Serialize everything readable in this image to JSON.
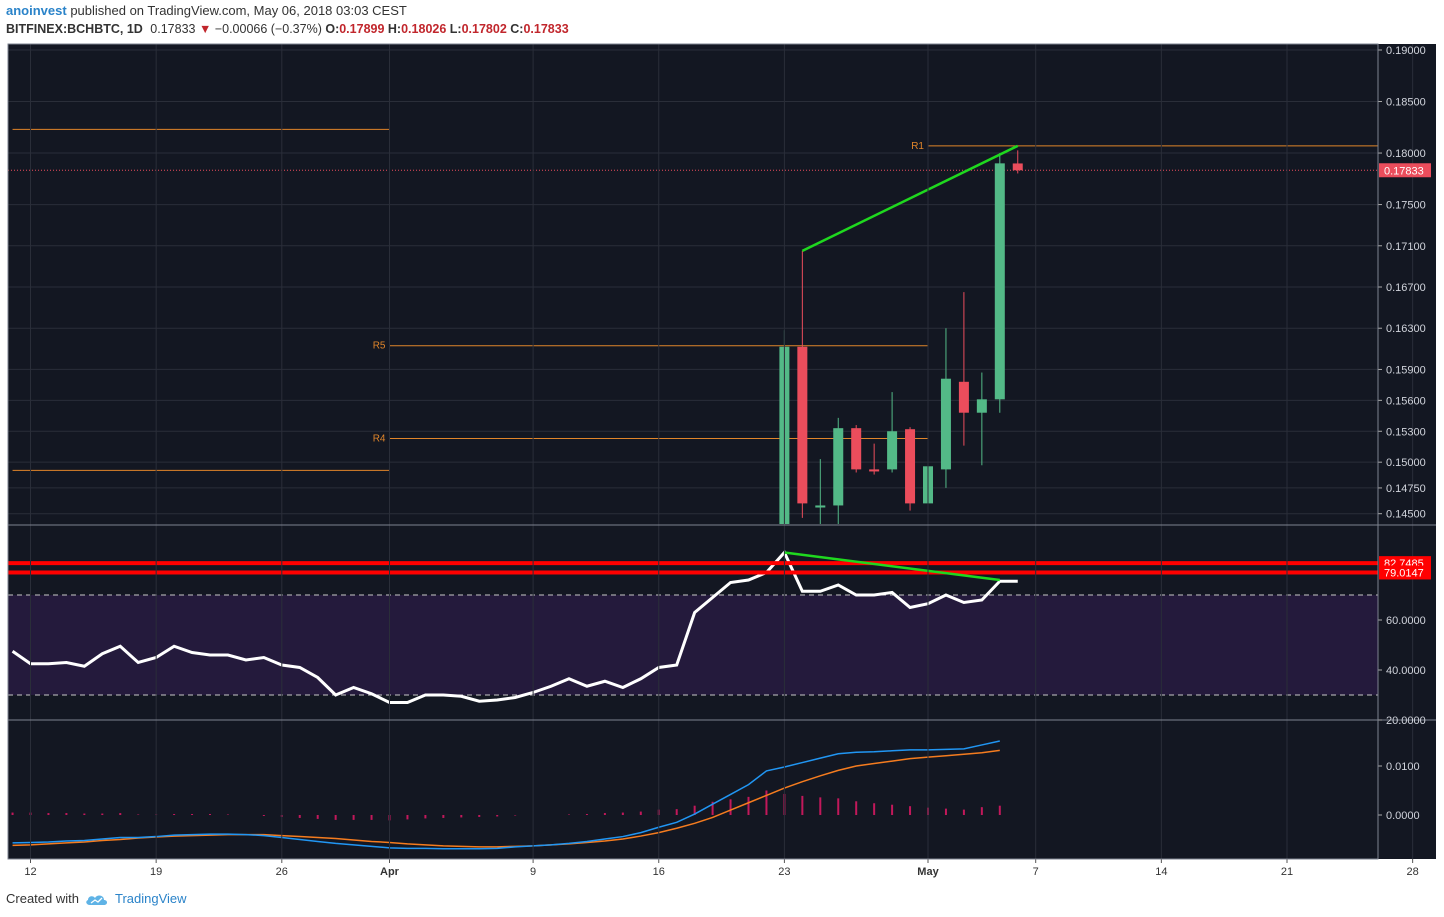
{
  "header": {
    "user": "anoinvest",
    "published_text": "published on TradingView.com, May 06, 2018 03:03 CEST",
    "symbol": "BITFINEX:BCHBTC, 1D",
    "last": "0.17833",
    "change": "−0.00066 (−0.37%)",
    "o_label": "O:",
    "o_value": "0.17899",
    "h_label": "H:",
    "h_value": "0.18026",
    "l_label": "L:",
    "l_value": "0.17802",
    "c_label": "C:",
    "c_value": "0.17833"
  },
  "footer": {
    "created_with": "Created with",
    "brand": "TradingView"
  },
  "colors": {
    "background": "#131722",
    "grid": "#2a2e39",
    "up": "#53b987",
    "down": "#eb4d5c",
    "pivot": "#e0852a",
    "trend": "#1fd81f",
    "rsi_line": "#ffffff",
    "rsi_band": "#241a3c",
    "rsi_level": "#ff0000",
    "macd": "#2196f3",
    "signal": "#f57c1f",
    "hist": "#c2185b"
  },
  "chart_data": [
    {
      "type": "candlestick",
      "name": "price",
      "yticks": [
        "0.19000",
        "0.18500",
        "0.18000",
        "0.17500",
        "0.17100",
        "0.16700",
        "0.16300",
        "0.15900",
        "0.15600",
        "0.15300",
        "0.15000",
        "0.14750",
        "0.14500"
      ],
      "last_price_label": "0.17833",
      "xticks": [
        {
          "day": 0,
          "label": "12"
        },
        {
          "day": 7,
          "label": "19"
        },
        {
          "day": 14,
          "label": "26"
        },
        {
          "day": 20,
          "label": "Apr"
        },
        {
          "day": 28,
          "label": "9"
        },
        {
          "day": 35,
          "label": "16"
        },
        {
          "day": 42,
          "label": "23"
        },
        {
          "day": 50,
          "label": "May"
        },
        {
          "day": 56,
          "label": "7"
        },
        {
          "day": 63,
          "label": "14"
        },
        {
          "day": 70,
          "label": "21"
        },
        {
          "day": 77,
          "label": "28"
        }
      ],
      "candles": [
        {
          "day": 42,
          "o": 0.144,
          "h": 0.1628,
          "l": 0.144,
          "c": 0.1612
        },
        {
          "day": 43,
          "o": 0.1612,
          "h": 0.1705,
          "l": 0.1446,
          "c": 0.146
        },
        {
          "day": 44,
          "o": 0.1456,
          "h": 0.1503,
          "l": 0.144,
          "c": 0.1458
        },
        {
          "day": 45,
          "o": 0.1458,
          "h": 0.1543,
          "l": 0.144,
          "c": 0.1533
        },
        {
          "day": 46,
          "o": 0.1533,
          "h": 0.1536,
          "l": 0.149,
          "c": 0.1493
        },
        {
          "day": 47,
          "o": 0.1493,
          "h": 0.1518,
          "l": 0.1488,
          "c": 0.1491
        },
        {
          "day": 48,
          "o": 0.1493,
          "h": 0.1568,
          "l": 0.149,
          "c": 0.153
        },
        {
          "day": 49,
          "o": 0.1532,
          "h": 0.1534,
          "l": 0.1453,
          "c": 0.146
        },
        {
          "day": 50,
          "o": 0.146,
          "h": 0.1496,
          "l": 0.144,
          "c": 0.1496
        },
        {
          "day": 51,
          "o": 0.1493,
          "h": 0.163,
          "l": 0.1475,
          "c": 0.1581
        },
        {
          "day": 52,
          "o": 0.1578,
          "h": 0.1665,
          "l": 0.1516,
          "c": 0.1548
        },
        {
          "day": 53,
          "o": 0.1548,
          "h": 0.1587,
          "l": 0.1497,
          "c": 0.1561
        },
        {
          "day": 54,
          "o": 0.1561,
          "h": 0.18,
          "l": 0.1548,
          "c": 0.179
        },
        {
          "day": 55,
          "o": 0.17899,
          "h": 0.18026,
          "l": 0.17802,
          "c": 0.17833
        }
      ],
      "pivot_lines": [
        {
          "label": "",
          "value": 0.1823,
          "day_from": -1,
          "day_to": 20
        },
        {
          "label": "R1",
          "value": 0.1807,
          "day_from": 50,
          "day_to": 77
        },
        {
          "label": "R5",
          "value": 0.1613,
          "day_from": 20,
          "day_to": 50
        },
        {
          "label": "R4",
          "value": 0.1523,
          "day_from": 20,
          "day_to": 50
        },
        {
          "label": "",
          "value": 0.1492,
          "day_from": -1,
          "day_to": 20
        }
      ],
      "trendline": [
        {
          "day": 43,
          "value": 0.1705
        },
        {
          "day": 55,
          "value": 0.1807
        }
      ]
    },
    {
      "type": "line",
      "name": "rsi",
      "yticks": [
        "60.0000",
        "40.0000",
        "20.0000"
      ],
      "levels": [
        {
          "label": "82.7485",
          "value": 82.7485
        },
        {
          "label": "79.0147",
          "value": 79.0147
        }
      ],
      "band": [
        30,
        70
      ],
      "values": [
        47.5,
        42.5,
        42.5,
        43,
        41.5,
        46.5,
        49.5,
        43,
        45,
        49.5,
        47,
        46,
        46,
        44,
        45,
        42,
        41,
        37,
        30,
        33,
        30.5,
        27,
        27,
        30,
        30,
        29.5,
        27.5,
        28,
        29,
        31,
        33.5,
        36.5,
        33.5,
        35.5,
        33,
        36.5,
        41,
        42,
        63,
        69,
        75,
        76,
        79,
        87,
        71.5,
        71.5,
        74,
        70,
        70,
        71,
        65,
        66.5,
        70,
        67,
        68,
        75.5,
        75.5
      ],
      "trendline": [
        {
          "day": 42,
          "value": 87
        },
        {
          "day": 54,
          "value": 76
        }
      ]
    },
    {
      "type": "line",
      "name": "macd",
      "yticks": [
        "0.0100",
        "0.0000"
      ],
      "macd": [
        -0.0057,
        -0.0056,
        -0.0055,
        -0.0053,
        -0.0052,
        -0.0049,
        -0.0046,
        -0.0046,
        -0.0044,
        -0.0041,
        -0.004,
        -0.0039,
        -0.0039,
        -0.004,
        -0.0042,
        -0.0046,
        -0.005,
        -0.0054,
        -0.0058,
        -0.0061,
        -0.0064,
        -0.0067,
        -0.0068,
        -0.0068,
        -0.0069,
        -0.0069,
        -0.0069,
        -0.0068,
        -0.0065,
        -0.0063,
        -0.0061,
        -0.0058,
        -0.0054,
        -0.0049,
        -0.0044,
        -0.0036,
        -0.0025,
        -0.0015,
        0.0002,
        0.0022,
        0.0042,
        0.0062,
        0.009,
        0.0098,
        0.0107,
        0.0116,
        0.0125,
        0.0128,
        0.0129,
        0.0131,
        0.0133,
        0.0133,
        0.0134,
        0.0135,
        0.0143,
        0.0151
      ],
      "signal": [
        -0.0062,
        -0.0061,
        -0.0059,
        -0.0057,
        -0.0055,
        -0.0052,
        -0.005,
        -0.0047,
        -0.0045,
        -0.0043,
        -0.0042,
        -0.0041,
        -0.004,
        -0.004,
        -0.004,
        -0.0042,
        -0.0044,
        -0.0046,
        -0.0048,
        -0.0051,
        -0.0054,
        -0.0056,
        -0.0059,
        -0.0061,
        -0.0063,
        -0.0064,
        -0.0065,
        -0.0065,
        -0.0064,
        -0.0063,
        -0.0061,
        -0.0059,
        -0.0056,
        -0.0053,
        -0.0049,
        -0.0043,
        -0.0036,
        -0.0027,
        -0.0017,
        -0.0005,
        0.001,
        0.0025,
        0.004,
        0.0055,
        0.0068,
        0.008,
        0.0091,
        0.01,
        0.0105,
        0.011,
        0.0115,
        0.0118,
        0.0121,
        0.0124,
        0.0127,
        0.0132
      ],
      "hist": [
        0.0005,
        0.0005,
        0.0004,
        0.0004,
        0.0003,
        0.0003,
        0.0004,
        0.0001,
        0.0001,
        0.0002,
        0.0002,
        0.0002,
        0.0001,
        0.0,
        -0.0002,
        -0.0004,
        -0.0006,
        -0.0008,
        -0.001,
        -0.001,
        -0.001,
        -0.0011,
        -0.0009,
        -0.0007,
        -0.0006,
        -0.0005,
        -0.0004,
        -0.0003,
        -0.0001,
        0.0,
        0.0,
        0.0001,
        0.0002,
        0.0004,
        0.0005,
        0.0007,
        0.0011,
        0.0012,
        0.0019,
        0.0027,
        0.0032,
        0.0037,
        0.005,
        0.0043,
        0.0039,
        0.0036,
        0.0034,
        0.0028,
        0.0024,
        0.0021,
        0.0018,
        0.0015,
        0.0013,
        0.0011,
        0.0016,
        0.0019
      ]
    }
  ]
}
